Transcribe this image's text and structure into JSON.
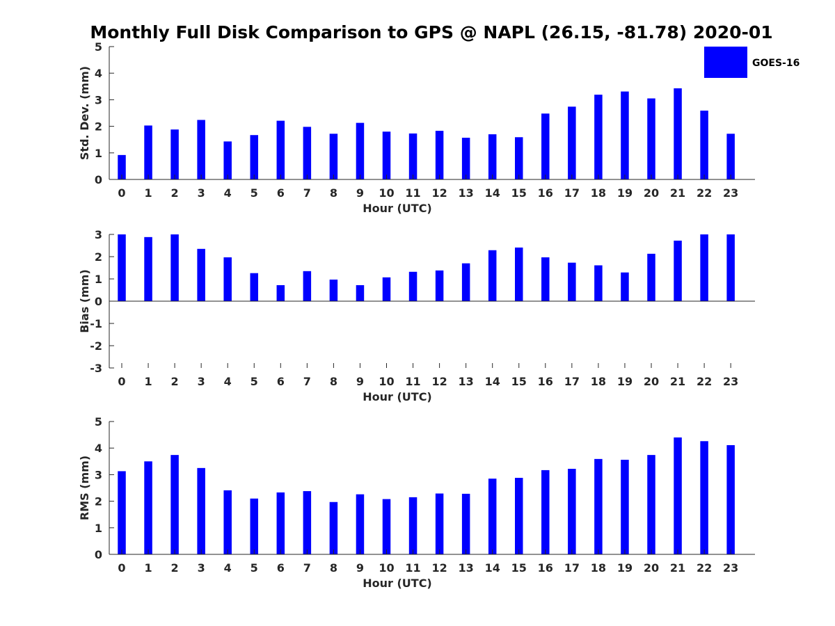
{
  "title": "Monthly Full Disk Comparison to GPS @ NAPL (26.15, -81.78) 2020-01",
  "legend": {
    "label": "GOES-16",
    "color": "#0000ff",
    "placement": "top-right"
  },
  "chart_data": [
    {
      "type": "bar",
      "name": "std",
      "xlabel": "Hour (UTC)",
      "ylabel": "Std. Dev. (mm)",
      "ylim": [
        0,
        5
      ],
      "yticks": [
        0,
        1,
        2,
        3,
        4,
        5
      ],
      "categories": [
        "0",
        "1",
        "2",
        "3",
        "4",
        "5",
        "6",
        "7",
        "8",
        "9",
        "10",
        "11",
        "12",
        "13",
        "14",
        "15",
        "16",
        "17",
        "18",
        "19",
        "20",
        "21",
        "22",
        "23"
      ],
      "series": [
        {
          "name": "GOES-16",
          "color": "#0000ff",
          "values": [
            0.92,
            2.03,
            1.88,
            2.24,
            1.43,
            1.67,
            2.21,
            1.98,
            1.72,
            2.13,
            1.8,
            1.73,
            1.83,
            1.57,
            1.7,
            1.59,
            2.48,
            2.74,
            3.19,
            3.31,
            3.05,
            3.43,
            2.59,
            1.72
          ]
        }
      ]
    },
    {
      "type": "bar",
      "name": "bias",
      "xlabel": "Hour (UTC)",
      "ylabel": "Bias (mm)",
      "ylim": [
        -3,
        3
      ],
      "yticks": [
        -3,
        -2,
        -1,
        0,
        1,
        2,
        3
      ],
      "categories": [
        "0",
        "1",
        "2",
        "3",
        "4",
        "5",
        "6",
        "7",
        "8",
        "9",
        "10",
        "11",
        "12",
        "13",
        "14",
        "15",
        "16",
        "17",
        "18",
        "19",
        "20",
        "21",
        "22",
        "23"
      ],
      "series": [
        {
          "name": "GOES-16",
          "color": "#0000ff",
          "values": [
            3.0,
            2.88,
            3.0,
            2.35,
            1.97,
            1.26,
            0.72,
            1.35,
            0.97,
            0.72,
            1.07,
            1.32,
            1.38,
            1.7,
            2.29,
            2.41,
            1.97,
            1.73,
            1.61,
            1.29,
            2.13,
            2.72,
            3.0,
            3.0
          ]
        }
      ]
    },
    {
      "type": "bar",
      "name": "rms",
      "xlabel": "Hour (UTC)",
      "ylabel": "RMS (mm)",
      "ylim": [
        0,
        5
      ],
      "yticks": [
        0,
        1,
        2,
        3,
        4,
        5
      ],
      "categories": [
        "0",
        "1",
        "2",
        "3",
        "4",
        "5",
        "6",
        "7",
        "8",
        "9",
        "10",
        "11",
        "12",
        "13",
        "14",
        "15",
        "16",
        "17",
        "18",
        "19",
        "20",
        "21",
        "22",
        "23"
      ],
      "series": [
        {
          "name": "GOES-16",
          "color": "#0000ff",
          "values": [
            3.13,
            3.5,
            3.74,
            3.25,
            2.41,
            2.1,
            2.33,
            2.38,
            1.97,
            2.26,
            2.08,
            2.15,
            2.29,
            2.28,
            2.85,
            2.88,
            3.17,
            3.22,
            3.59,
            3.56,
            3.74,
            4.4,
            4.26,
            4.11
          ]
        }
      ]
    }
  ]
}
